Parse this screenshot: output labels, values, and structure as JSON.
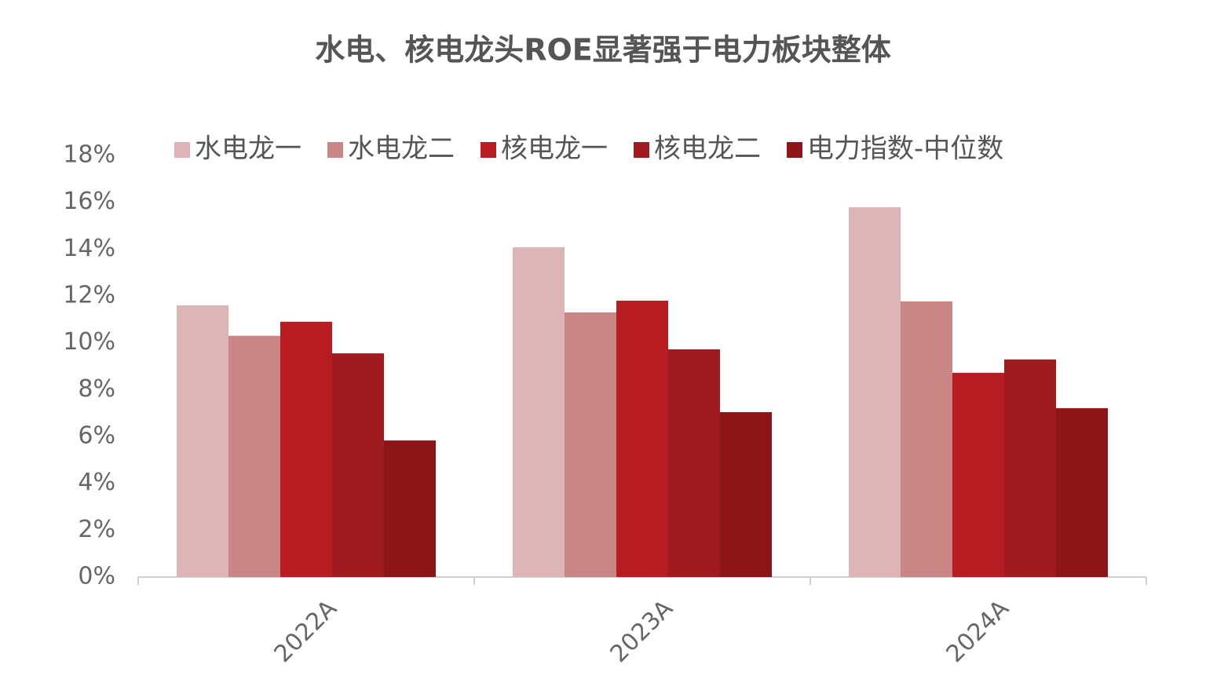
{
  "chart_data": {
    "type": "bar",
    "title": "水电、核电龙头ROE显著强于电力板块整体",
    "categories": [
      "2022A",
      "2023A",
      "2024A"
    ],
    "series": [
      {
        "name": "水电龙一",
        "color": "#ddb5b6",
        "values": [
          11.6,
          14.08,
          15.79
        ]
      },
      {
        "name": "水电龙二",
        "color": "#ca8587",
        "values": [
          10.3,
          11.3,
          11.77
        ]
      },
      {
        "name": "核电龙一",
        "color": "#b71c22",
        "values": [
          10.9,
          11.8,
          8.72
        ]
      },
      {
        "name": "核电龙二",
        "color": "#a01b20",
        "values": [
          9.55,
          9.72,
          9.29
        ]
      },
      {
        "name": "电力指数-中位数",
        "color": "#8b1517",
        "values": [
          5.83,
          7.04,
          7.21
        ]
      }
    ],
    "ylim": [
      0,
      18
    ],
    "yticks": [
      {
        "value": 0,
        "label": "0%"
      },
      {
        "value": 2,
        "label": "2%"
      },
      {
        "value": 4,
        "label": "4%"
      },
      {
        "value": 6,
        "label": "6%"
      },
      {
        "value": 8,
        "label": "8%"
      },
      {
        "value": 10,
        "label": "10%"
      },
      {
        "value": 12,
        "label": "12%"
      },
      {
        "value": 14,
        "label": "14%"
      },
      {
        "value": 16,
        "label": "16%"
      },
      {
        "value": 18,
        "label": "18%"
      }
    ],
    "grid": false,
    "legend": "top"
  }
}
